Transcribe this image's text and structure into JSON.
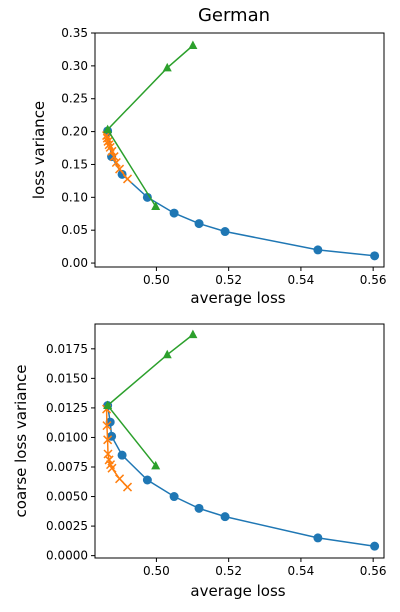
{
  "colors": {
    "blue": "#1f77b4",
    "orange": "#ff7f0e",
    "green": "#2ca02c"
  },
  "chart_data": [
    {
      "type": "line",
      "title": "German",
      "xlabel": "average loss",
      "ylabel": "loss variance",
      "xlim": [
        0.483,
        0.563
      ],
      "ylim": [
        -0.006,
        0.35
      ],
      "xticks": [
        "0.50",
        "0.52",
        "0.54",
        "0.56"
      ],
      "xtick_values": [
        0.5,
        0.52,
        0.54,
        0.56
      ],
      "yticks": [
        "0.00",
        "0.05",
        "0.10",
        "0.15",
        "0.20",
        "0.25",
        "0.30",
        "0.35"
      ],
      "ytick_values": [
        0.0,
        0.05,
        0.1,
        0.15,
        0.2,
        0.25,
        0.3,
        0.35
      ],
      "grid": false,
      "series": [
        {
          "color": "#1f77b4",
          "marker": "circle",
          "x": [
            0.4865,
            0.4876,
            0.4905,
            0.4975,
            0.5049,
            0.5118,
            0.519,
            0.5447,
            0.5604
          ],
          "y": [
            0.201,
            0.162,
            0.135,
            0.1,
            0.076,
            0.06,
            0.048,
            0.02,
            0.011
          ]
        },
        {
          "color": "#ff7f0e",
          "marker": "x",
          "x": [
            0.4862,
            0.4864,
            0.4866,
            0.4869,
            0.4872,
            0.4877,
            0.4883,
            0.4889,
            0.4898,
            0.492
          ],
          "y": [
            0.194,
            0.19,
            0.185,
            0.18,
            0.176,
            0.17,
            0.162,
            0.153,
            0.143,
            0.128
          ]
        },
        {
          "color": "#2ca02c",
          "marker": "triangle",
          "x": [
            0.4998,
            0.4865,
            0.503,
            0.5101
          ],
          "y": [
            0.086,
            0.203,
            0.297,
            0.331
          ]
        }
      ]
    },
    {
      "type": "line",
      "title": "",
      "xlabel": "average loss",
      "ylabel": "coarse loss variance",
      "xlim": [
        0.483,
        0.563
      ],
      "ylim": [
        -0.0002,
        0.0196
      ],
      "xticks": [
        "0.50",
        "0.52",
        "0.54",
        "0.56"
      ],
      "xtick_values": [
        0.5,
        0.52,
        0.54,
        0.56
      ],
      "yticks": [
        "0.0000",
        "0.0025",
        "0.0050",
        "0.0075",
        "0.0100",
        "0.0125",
        "0.0150",
        "0.0175"
      ],
      "ytick_values": [
        0.0,
        0.0025,
        0.005,
        0.0075,
        0.01,
        0.0125,
        0.015,
        0.0175
      ],
      "grid": false,
      "series": [
        {
          "color": "#1f77b4",
          "marker": "circle",
          "x": [
            0.4865,
            0.4872,
            0.4876,
            0.4905,
            0.4975,
            0.5049,
            0.5118,
            0.519,
            0.5447,
            0.5604
          ],
          "y": [
            0.0127,
            0.0113,
            0.0101,
            0.0085,
            0.0064,
            0.005,
            0.004,
            0.0033,
            0.0015,
            0.0008
          ]
        },
        {
          "color": "#ff7f0e",
          "marker": "x",
          "x": [
            0.4862,
            0.4863,
            0.4865,
            0.4866,
            0.4869,
            0.4873,
            0.4877,
            0.4898,
            0.492
          ],
          "y": [
            0.0124,
            0.011,
            0.0098,
            0.0086,
            0.0081,
            0.0077,
            0.0074,
            0.0065,
            0.0058
          ]
        },
        {
          "color": "#2ca02c",
          "marker": "triangle",
          "x": [
            0.4998,
            0.4865,
            0.503,
            0.5101
          ],
          "y": [
            0.0076,
            0.0127,
            0.017,
            0.0187
          ]
        }
      ]
    }
  ]
}
